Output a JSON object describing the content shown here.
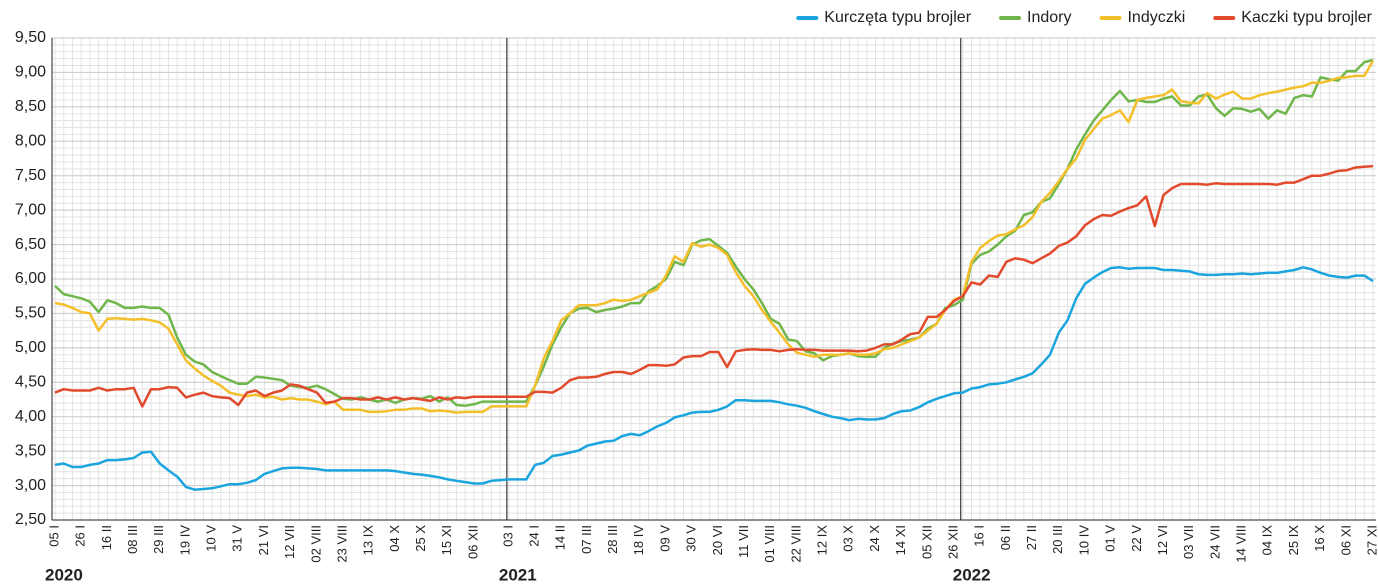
{
  "chart_data": {
    "type": "line",
    "legend": "top-right",
    "grid": true,
    "year_labels": [
      "2020",
      "2021",
      "2022"
    ],
    "categories": [
      "05 I",
      null,
      null,
      "26 I",
      null,
      null,
      "16 II",
      null,
      null,
      "08 III",
      null,
      null,
      "29 III",
      null,
      null,
      "19 IV",
      null,
      null,
      "10 V",
      null,
      null,
      "31 V",
      null,
      null,
      "21 VI",
      null,
      null,
      "12 VII",
      null,
      null,
      "02 VIII",
      null,
      null,
      "23 VIII",
      null,
      null,
      "13 IX",
      null,
      null,
      "04 X",
      null,
      null,
      "25 X",
      null,
      null,
      "15 XI",
      null,
      null,
      "06 XII",
      null,
      null,
      null,
      "03 I",
      null,
      null,
      "24 I",
      null,
      null,
      "14 II",
      null,
      null,
      "07 III",
      null,
      null,
      "28 III",
      null,
      null,
      "18 IV",
      null,
      null,
      "09 V",
      null,
      null,
      "30 V",
      null,
      null,
      "20 VI",
      null,
      null,
      "11 VII",
      null,
      null,
      "01 VIII",
      null,
      null,
      "22 VIII",
      null,
      null,
      "12 IX",
      null,
      null,
      "03 X",
      null,
      null,
      "24 X",
      null,
      null,
      "14 XI",
      null,
      null,
      "05 XII",
      null,
      null,
      "26 XII",
      null,
      null,
      "16 I",
      null,
      null,
      "06 II",
      null,
      null,
      "27 II",
      null,
      null,
      "20 III",
      null,
      null,
      "10 IV",
      null,
      null,
      "01 V",
      null,
      null,
      "22 V",
      null,
      null,
      "12 VI",
      null,
      null,
      "03 VII",
      null,
      null,
      "24 VII",
      null,
      null,
      "14 VIII",
      null,
      null,
      "04 IX",
      null,
      null,
      "25 IX",
      null,
      null,
      "16 X",
      null,
      null,
      "06 XI",
      null,
      null,
      "27 XI"
    ],
    "ylim": [
      2.5,
      9.5
    ],
    "yticks": [
      {
        "value": 2.5,
        "label": "2,50"
      },
      {
        "value": 3,
        "label": "3,00"
      },
      {
        "value": 3.5,
        "label": "3,50"
      },
      {
        "value": 4,
        "label": "4,00"
      },
      {
        "value": 4.5,
        "label": "4,50"
      },
      {
        "value": 5,
        "label": "5,00"
      },
      {
        "value": 5.5,
        "label": "5,50"
      },
      {
        "value": 6,
        "label": "6,00"
      },
      {
        "value": 6.5,
        "label": "6,50"
      },
      {
        "value": 7,
        "label": "7,00"
      },
      {
        "value": 7.5,
        "label": "7,50"
      },
      {
        "value": 8,
        "label": "8,00"
      },
      {
        "value": 8.5,
        "label": "8,50"
      },
      {
        "value": 9,
        "label": "9,00"
      },
      {
        "value": 9.5,
        "label": "9,50"
      }
    ],
    "series": [
      {
        "name": "Kurczęta typu brojler",
        "color": "#1ba5df",
        "values": [
          3.3,
          3.32,
          3.27,
          3.27,
          3.3,
          3.32,
          3.37,
          3.37,
          3.38,
          3.4,
          3.48,
          3.49,
          3.32,
          3.22,
          3.13,
          2.98,
          2.94,
          2.95,
          2.96,
          2.99,
          3.02,
          3.02,
          3.04,
          3.08,
          3.17,
          3.21,
          3.25,
          3.26,
          3.26,
          3.25,
          3.24,
          3.22,
          3.22,
          3.22,
          3.22,
          3.22,
          3.22,
          3.22,
          3.22,
          3.21,
          3.19,
          3.17,
          3.16,
          3.14,
          3.12,
          3.09,
          3.07,
          3.05,
          3.03,
          3.03,
          3.07,
          3.08,
          3.09,
          3.09,
          3.09,
          3.3,
          3.33,
          3.43,
          3.45,
          3.48,
          3.51,
          3.58,
          3.61,
          3.64,
          3.65,
          3.72,
          3.75,
          3.73,
          3.79,
          3.86,
          3.91,
          3.99,
          4.02,
          4.06,
          4.07,
          4.07,
          4.1,
          4.15,
          4.24,
          4.24,
          4.23,
          4.23,
          4.23,
          4.21,
          4.18,
          4.16,
          4.13,
          4.08,
          4.04,
          4.0,
          3.98,
          3.95,
          3.97,
          3.96,
          3.96,
          3.98,
          4.04,
          4.08,
          4.09,
          4.14,
          4.21,
          4.26,
          4.3,
          4.34,
          4.35,
          4.41,
          4.43,
          4.47,
          4.48,
          4.5,
          4.54,
          4.58,
          4.63,
          4.76,
          4.9,
          5.22,
          5.4,
          5.72,
          5.93,
          6.02,
          6.1,
          6.16,
          6.17,
          6.15,
          6.16,
          6.16,
          6.16,
          6.13,
          6.13,
          6.12,
          6.11,
          6.07,
          6.06,
          6.06,
          6.07,
          6.07,
          6.08,
          6.07,
          6.08,
          6.09,
          6.09,
          6.11,
          6.13,
          6.17,
          6.14,
          6.09,
          6.05,
          6.03,
          6.02,
          6.05,
          6.05,
          5.97
        ]
      },
      {
        "name": "Indory",
        "color": "#6fb64b",
        "values": [
          5.9,
          5.78,
          5.75,
          5.72,
          5.67,
          5.52,
          5.69,
          5.65,
          5.58,
          5.58,
          5.6,
          5.58,
          5.58,
          5.48,
          5.15,
          4.9,
          4.8,
          4.76,
          4.65,
          4.59,
          4.53,
          4.48,
          4.48,
          4.58,
          4.57,
          4.55,
          4.53,
          4.45,
          4.43,
          4.42,
          4.45,
          4.4,
          4.33,
          4.26,
          4.25,
          4.28,
          4.25,
          4.22,
          4.25,
          4.2,
          4.25,
          4.27,
          4.26,
          4.3,
          4.22,
          4.28,
          4.17,
          4.16,
          4.18,
          4.22,
          4.22,
          4.22,
          4.22,
          4.22,
          4.22,
          4.45,
          4.73,
          5.05,
          5.3,
          5.5,
          5.57,
          5.58,
          5.52,
          5.55,
          5.57,
          5.6,
          5.65,
          5.65,
          5.82,
          5.9,
          6.0,
          6.25,
          6.2,
          6.5,
          6.56,
          6.58,
          6.48,
          6.38,
          6.18,
          6.0,
          5.85,
          5.65,
          5.42,
          5.35,
          5.12,
          5.1,
          4.95,
          4.92,
          4.82,
          4.88,
          4.9,
          4.92,
          4.88,
          4.87,
          4.87,
          5.0,
          5.06,
          5.1,
          5.12,
          5.15,
          5.28,
          5.35,
          5.58,
          5.62,
          5.7,
          6.22,
          6.35,
          6.4,
          6.5,
          6.62,
          6.7,
          6.93,
          6.97,
          7.12,
          7.17,
          7.38,
          7.6,
          7.88,
          8.1,
          8.3,
          8.45,
          8.6,
          8.73,
          8.58,
          8.6,
          8.57,
          8.57,
          8.62,
          8.65,
          8.52,
          8.52,
          8.65,
          8.68,
          8.48,
          8.37,
          8.48,
          8.47,
          8.43,
          8.47,
          8.33,
          8.45,
          8.4,
          8.63,
          8.67,
          8.65,
          8.93,
          8.9,
          8.88,
          9.02,
          9.02,
          9.15,
          9.18
        ]
      },
      {
        "name": "Indyczki",
        "color": "#f3bf2a",
        "values": [
          5.65,
          5.63,
          5.58,
          5.52,
          5.5,
          5.25,
          5.42,
          5.43,
          5.42,
          5.41,
          5.42,
          5.4,
          5.37,
          5.28,
          5.05,
          4.82,
          4.7,
          4.6,
          4.52,
          4.45,
          4.35,
          4.32,
          4.3,
          4.32,
          4.28,
          4.29,
          4.25,
          4.27,
          4.25,
          4.25,
          4.22,
          4.18,
          4.22,
          4.1,
          4.1,
          4.1,
          4.07,
          4.07,
          4.08,
          4.1,
          4.1,
          4.12,
          4.12,
          4.08,
          4.09,
          4.08,
          4.06,
          4.07,
          4.07,
          4.07,
          4.15,
          4.15,
          4.15,
          4.15,
          4.15,
          4.45,
          4.85,
          5.1,
          5.4,
          5.5,
          5.62,
          5.62,
          5.62,
          5.65,
          5.7,
          5.68,
          5.7,
          5.75,
          5.8,
          5.85,
          6.05,
          6.33,
          6.25,
          6.52,
          6.47,
          6.5,
          6.45,
          6.35,
          6.1,
          5.9,
          5.75,
          5.55,
          5.38,
          5.22,
          5.05,
          4.93,
          4.9,
          4.87,
          4.9,
          4.9,
          4.9,
          4.92,
          4.9,
          4.9,
          4.92,
          4.98,
          5.0,
          5.05,
          5.1,
          5.15,
          5.25,
          5.35,
          5.55,
          5.7,
          5.75,
          6.25,
          6.45,
          6.55,
          6.63,
          6.65,
          6.72,
          6.78,
          6.9,
          7.12,
          7.25,
          7.42,
          7.6,
          7.75,
          8.02,
          8.18,
          8.33,
          8.38,
          8.45,
          8.28,
          8.6,
          8.63,
          8.65,
          8.67,
          8.75,
          8.58,
          8.56,
          8.55,
          8.7,
          8.62,
          8.68,
          8.72,
          8.62,
          8.62,
          8.67,
          8.7,
          8.72,
          8.75,
          8.78,
          8.8,
          8.85,
          8.85,
          8.88,
          8.92,
          8.93,
          8.95,
          8.95,
          9.17
        ]
      },
      {
        "name": "Kaczki typu brojler",
        "color": "#e24a2e",
        "values": [
          4.35,
          4.4,
          4.38,
          4.38,
          4.38,
          4.42,
          4.38,
          4.4,
          4.4,
          4.42,
          4.15,
          4.4,
          4.4,
          4.43,
          4.42,
          4.28,
          4.32,
          4.35,
          4.3,
          4.28,
          4.27,
          4.17,
          4.35,
          4.38,
          4.3,
          4.35,
          4.38,
          4.47,
          4.45,
          4.4,
          4.35,
          4.2,
          4.22,
          4.27,
          4.27,
          4.25,
          4.25,
          4.28,
          4.25,
          4.28,
          4.25,
          4.27,
          4.25,
          4.23,
          4.28,
          4.25,
          4.28,
          4.27,
          4.29,
          4.29,
          4.29,
          4.29,
          4.29,
          4.29,
          4.29,
          4.36,
          4.36,
          4.35,
          4.42,
          4.53,
          4.57,
          4.57,
          4.58,
          4.62,
          4.65,
          4.65,
          4.62,
          4.68,
          4.75,
          4.75,
          4.74,
          4.76,
          4.86,
          4.88,
          4.88,
          4.94,
          4.94,
          4.72,
          4.95,
          4.97,
          4.98,
          4.97,
          4.97,
          4.95,
          4.97,
          4.98,
          4.97,
          4.97,
          4.96,
          4.96,
          4.96,
          4.96,
          4.95,
          4.96,
          5.0,
          5.05,
          5.05,
          5.12,
          5.2,
          5.22,
          5.45,
          5.45,
          5.55,
          5.68,
          5.75,
          5.95,
          5.92,
          6.05,
          6.03,
          6.25,
          6.3,
          6.28,
          6.23,
          6.3,
          6.37,
          6.48,
          6.53,
          6.62,
          6.78,
          6.87,
          6.93,
          6.92,
          6.98,
          7.03,
          7.07,
          7.2,
          6.77,
          7.22,
          7.32,
          7.38,
          7.38,
          7.38,
          7.37,
          7.39,
          7.38,
          7.38,
          7.38,
          7.38,
          7.38,
          7.38,
          7.37,
          7.4,
          7.4,
          7.45,
          7.5,
          7.5,
          7.53,
          7.57,
          7.58,
          7.62,
          7.63,
          7.64
        ]
      }
    ]
  }
}
